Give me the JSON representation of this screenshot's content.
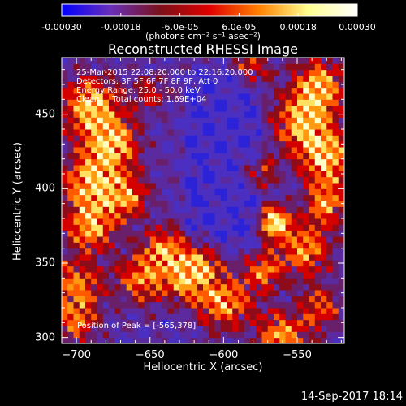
{
  "colorbar": {
    "ticks": [
      "-0.00030",
      "-0.00018",
      "-6.0e-05",
      "6.0e-05",
      "0.00018",
      "0.00030"
    ],
    "units_label": "(photons cm⁻² s⁻¹ asec⁻²)",
    "range": [
      -0.0003,
      0.0003
    ],
    "colors": [
      "#0000ff",
      "#6a2fb8",
      "#7a1018",
      "#e00000",
      "#ff8000",
      "#ffff90",
      "#ffffff"
    ]
  },
  "chart_data": {
    "type": "heatmap",
    "title": "Reconstructed RHESSI Image",
    "xlabel": "Heliocentric X (arcsec)",
    "ylabel": "Heliocentric Y (arcsec)",
    "xlim": [
      -710,
      -518
    ],
    "ylim": [
      296,
      488
    ],
    "xticks": [
      -700,
      -650,
      -600,
      -550
    ],
    "yticks": [
      300,
      350,
      400,
      450
    ],
    "xtick_labels": [
      "−700",
      "−650",
      "−600",
      "−550"
    ],
    "ytick_labels": [
      "300",
      "350",
      "400",
      "450"
    ],
    "peak": [
      -565,
      378
    ],
    "info_lines": [
      "25-Mar-2015 22:08:20.000 to 22:16:20.000",
      "Detectors: 3F 5F 6F 7F 8F 9F, Att 0",
      "Energy Range: 25.0 - 50.0 keV",
      "Clean     Total counts: 1.69E+04"
    ],
    "peak_label": "Position of Peak = [-565,378]"
  },
  "footer": {
    "date": "14-Sep-2017 18:14"
  }
}
